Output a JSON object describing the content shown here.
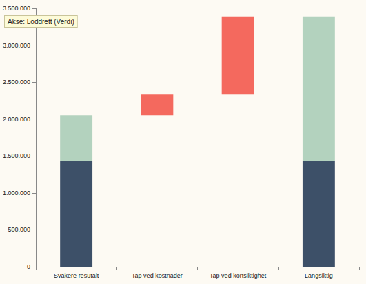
{
  "chart_data": {
    "type": "bar",
    "stacked": true,
    "grid": false,
    "annotation": "Akse: Loddrett (Verdi)",
    "categories": [
      "Svakere resutalt",
      "Tap ved kostnader",
      "Tap ved kortsiktighet",
      "Langsiktig"
    ],
    "ylim": [
      0,
      3500000
    ],
    "yticks": [
      0,
      {
        "value": 500000,
        "label": "500.000"
      },
      {
        "value": 1000000,
        "label": "1.000.000"
      },
      {
        "value": 1500000,
        "label": "1.500.000"
      },
      {
        "value": 2000000,
        "label": "2.000.000"
      },
      {
        "value": 2500000,
        "label": "2.500.000"
      },
      {
        "value": 3000000,
        "label": "3.000.000"
      },
      {
        "value": 3500000,
        "label": "3.500.000"
      }
    ],
    "series": [
      {
        "color": "#3d5068",
        "values": [
          1430000,
          null,
          null,
          1430000
        ]
      },
      {
        "color": "#b3d2be",
        "values": [
          620000,
          null,
          null,
          1960000
        ]
      },
      {
        "color": "#f4695e",
        "values": [
          null,
          280000,
          1060000,
          null
        ]
      }
    ]
  }
}
